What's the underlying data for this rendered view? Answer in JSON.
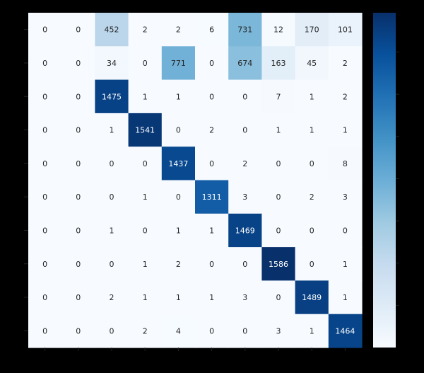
{
  "chart_data": {
    "type": "heatmap",
    "title": "",
    "xlabel": "",
    "ylabel": "",
    "x_tick_labels": [],
    "y_tick_labels": [],
    "matrix": [
      [
        0,
        0,
        452,
        2,
        2,
        6,
        731,
        12,
        170,
        101
      ],
      [
        0,
        0,
        34,
        0,
        771,
        0,
        674,
        163,
        45,
        2
      ],
      [
        0,
        0,
        1475,
        1,
        1,
        0,
        0,
        7,
        1,
        2
      ],
      [
        0,
        0,
        1,
        1541,
        0,
        2,
        0,
        1,
        1,
        1
      ],
      [
        0,
        0,
        0,
        0,
        1437,
        0,
        2,
        0,
        0,
        8
      ],
      [
        0,
        0,
        0,
        1,
        0,
        1311,
        3,
        0,
        2,
        3
      ],
      [
        0,
        0,
        1,
        0,
        1,
        1,
        1469,
        0,
        0,
        0
      ],
      [
        0,
        0,
        0,
        1,
        2,
        0,
        0,
        1586,
        0,
        1
      ],
      [
        0,
        0,
        2,
        1,
        1,
        1,
        3,
        0,
        1489,
        1
      ],
      [
        0,
        0,
        0,
        2,
        4,
        0,
        0,
        3,
        1,
        1464
      ]
    ],
    "value_range": [
      0,
      1586
    ],
    "colormap": "Blues",
    "colorbar": true,
    "annotations": true,
    "grid": false
  }
}
